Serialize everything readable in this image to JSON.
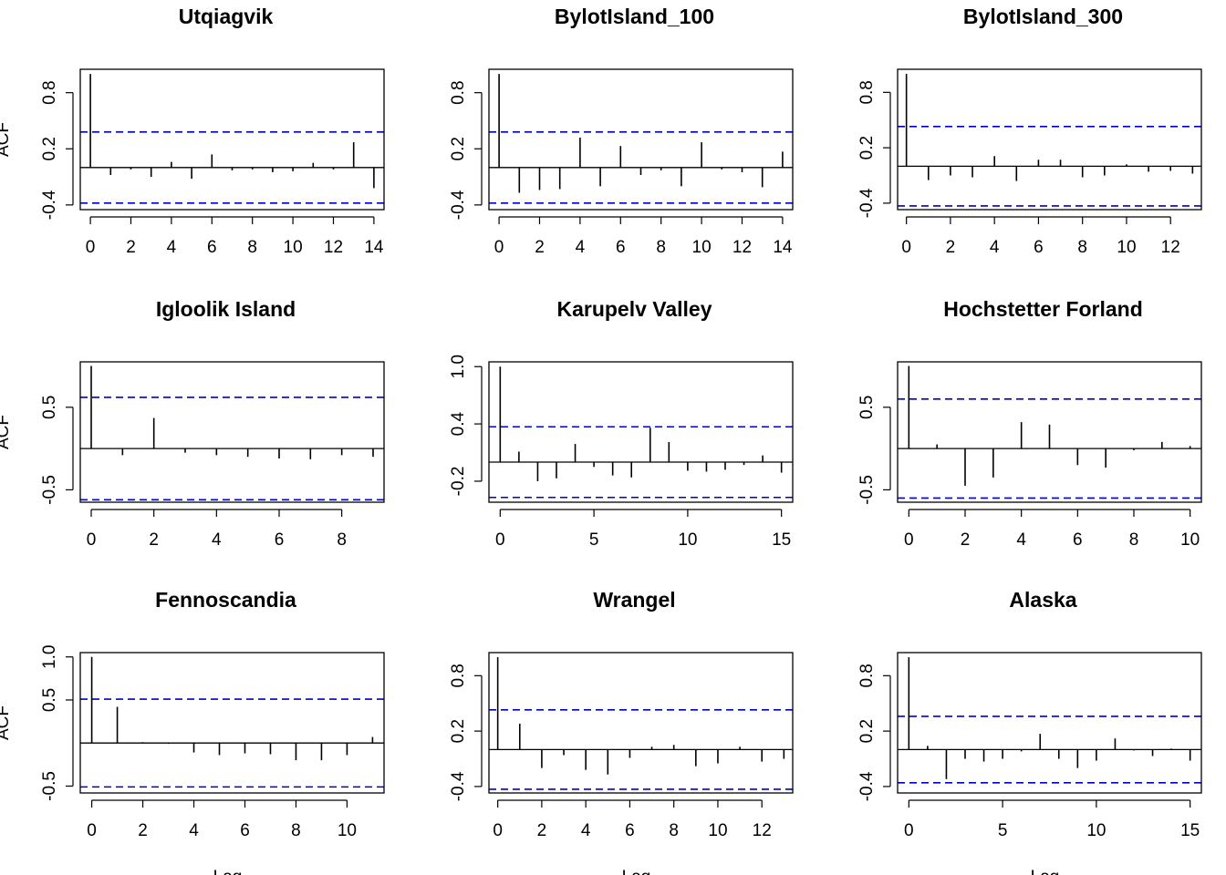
{
  "figure": {
    "ylabel": "ACF",
    "xlabel": "Lag"
  },
  "chart_data": [
    {
      "type": "bar",
      "title": "Utqiagvik",
      "xlabel": "Lag",
      "ylabel": "ACF",
      "xlim": [
        -0.5,
        14.5
      ],
      "ylim": [
        -0.45,
        1.05
      ],
      "xticks": [
        0,
        2,
        4,
        6,
        8,
        10,
        12,
        14
      ],
      "yticks": [
        -0.4,
        0.2,
        0.8
      ],
      "ytick_labels": [
        "-0.4",
        "0.2",
        "0.8"
      ],
      "ci": 0.38,
      "ci_color": "#0000cc",
      "lags": [
        0,
        1,
        2,
        3,
        4,
        5,
        6,
        7,
        8,
        9,
        10,
        11,
        12,
        13,
        14
      ],
      "acf": [
        1.0,
        -0.08,
        -0.02,
        -0.1,
        0.06,
        -0.12,
        0.14,
        -0.03,
        -0.02,
        -0.05,
        -0.04,
        0.05,
        -0.02,
        0.27,
        -0.22
      ]
    },
    {
      "type": "bar",
      "title": "BylotIsland_100",
      "xlabel": "Lag",
      "ylabel": "ACF",
      "xlim": [
        -0.5,
        14.5
      ],
      "ylim": [
        -0.45,
        1.05
      ],
      "xticks": [
        0,
        2,
        4,
        6,
        8,
        10,
        12,
        14
      ],
      "yticks": [
        -0.4,
        0.2,
        0.8
      ],
      "ytick_labels": [
        "-0.4",
        "0.2",
        "0.8"
      ],
      "ci": 0.38,
      "ci_color": "#0000cc",
      "lags": [
        0,
        1,
        2,
        3,
        4,
        5,
        6,
        7,
        8,
        9,
        10,
        11,
        12,
        13,
        14
      ],
      "acf": [
        1.0,
        -0.27,
        -0.24,
        -0.23,
        0.32,
        -0.2,
        0.23,
        -0.08,
        -0.03,
        -0.2,
        0.27,
        -0.02,
        -0.05,
        -0.21,
        0.17
      ]
    },
    {
      "type": "bar",
      "title": "BylotIsland_300",
      "xlabel": "Lag",
      "ylabel": "ACF",
      "xlim": [
        -0.4,
        13.4
      ],
      "ylim": [
        -0.47,
        1.05
      ],
      "xticks": [
        0,
        2,
        4,
        6,
        8,
        10,
        12
      ],
      "yticks": [
        -0.4,
        0.2,
        0.8
      ],
      "ytick_labels": [
        "-0.4",
        "0.2",
        "0.8"
      ],
      "ci": 0.43,
      "ci_color": "#0000cc",
      "lags": [
        0,
        1,
        2,
        3,
        4,
        5,
        6,
        7,
        8,
        9,
        10,
        11,
        12,
        13
      ],
      "acf": [
        1.0,
        -0.15,
        -0.1,
        -0.12,
        0.11,
        -0.16,
        0.07,
        0.07,
        -0.12,
        -0.1,
        0.02,
        -0.06,
        -0.05,
        -0.08
      ]
    },
    {
      "type": "bar",
      "title": "Igloolik Island",
      "xlabel": "Lag",
      "ylabel": "ACF",
      "xlim": [
        -0.35,
        9.35
      ],
      "ylim": [
        -0.65,
        1.05
      ],
      "xticks": [
        0,
        2,
        4,
        6,
        8
      ],
      "yticks": [
        -0.5,
        0.5
      ],
      "ytick_labels": [
        "-0.5",
        "0.5"
      ],
      "ci": 0.62,
      "ci_color": "#0000cc",
      "lags": [
        0,
        1,
        2,
        3,
        4,
        5,
        6,
        7,
        8,
        9
      ],
      "acf": [
        1.0,
        -0.08,
        0.37,
        -0.05,
        -0.08,
        -0.1,
        -0.12,
        -0.13,
        -0.08,
        -0.1
      ]
    },
    {
      "type": "bar",
      "title": "Karupelv Valley",
      "xlabel": "Lag",
      "ylabel": "ACF",
      "xlim": [
        -0.6,
        15.6
      ],
      "ylim": [
        -0.42,
        1.05
      ],
      "xticks": [
        0,
        5,
        10,
        15
      ],
      "yticks": [
        -0.2,
        0.4,
        1.0
      ],
      "ytick_labels": [
        "-0.2",
        "0.4",
        "1.0"
      ],
      "ci": 0.37,
      "ci_color": "#0000cc",
      "lags": [
        0,
        1,
        2,
        3,
        4,
        5,
        6,
        7,
        8,
        9,
        10,
        11,
        12,
        13,
        14,
        15
      ],
      "acf": [
        1.0,
        0.11,
        -0.2,
        -0.17,
        0.19,
        -0.05,
        -0.14,
        -0.16,
        0.36,
        0.21,
        -0.09,
        -0.1,
        -0.08,
        -0.03,
        0.07,
        -0.11
      ]
    },
    {
      "type": "bar",
      "title": "Hochstetter Forland",
      "xlabel": "Lag",
      "ylabel": "ACF",
      "xlim": [
        -0.4,
        10.4
      ],
      "ylim": [
        -0.65,
        1.05
      ],
      "xticks": [
        0,
        2,
        4,
        6,
        8,
        10
      ],
      "yticks": [
        -0.5,
        0.5
      ],
      "ytick_labels": [
        "-0.5",
        "0.5"
      ],
      "ci": 0.6,
      "ci_color": "#0000cc",
      "lags": [
        0,
        1,
        2,
        3,
        4,
        5,
        6,
        7,
        8,
        9,
        10
      ],
      "acf": [
        1.0,
        0.05,
        -0.45,
        -0.35,
        0.32,
        0.29,
        -0.2,
        -0.23,
        -0.02,
        0.08,
        0.03
      ]
    },
    {
      "type": "bar",
      "title": "Fennoscandia",
      "xlabel": "Lag",
      "ylabel": "ACF",
      "xlim": [
        -0.45,
        11.45
      ],
      "ylim": [
        -0.58,
        1.05
      ],
      "xticks": [
        0,
        2,
        4,
        6,
        8,
        10
      ],
      "yticks": [
        -0.5,
        0.5,
        1.0
      ],
      "ytick_labels": [
        "-0.5",
        "0.5",
        "1.0"
      ],
      "ci": 0.51,
      "ci_color": "#0000cc",
      "lags": [
        0,
        1,
        2,
        3,
        4,
        5,
        6,
        7,
        8,
        9,
        10,
        11
      ],
      "acf": [
        1.0,
        0.42,
        0.01,
        -0.01,
        -0.11,
        -0.14,
        -0.12,
        -0.13,
        -0.2,
        -0.2,
        -0.14,
        0.07
      ]
    },
    {
      "type": "bar",
      "title": "Wrangel",
      "xlabel": "Lag",
      "ylabel": "ACF",
      "xlim": [
        -0.4,
        13.4
      ],
      "ylim": [
        -0.47,
        1.05
      ],
      "xticks": [
        0,
        2,
        4,
        6,
        8,
        10,
        12
      ],
      "yticks": [
        -0.4,
        0.2,
        0.8
      ],
      "ytick_labels": [
        "-0.4",
        "0.2",
        "0.8"
      ],
      "ci": 0.43,
      "ci_color": "#0000cc",
      "lags": [
        0,
        1,
        2,
        3,
        4,
        5,
        6,
        7,
        8,
        9,
        10,
        11,
        12,
        13
      ],
      "acf": [
        1.0,
        0.28,
        -0.2,
        -0.06,
        -0.22,
        -0.27,
        -0.09,
        0.03,
        0.05,
        -0.18,
        -0.15,
        0.03,
        -0.13,
        -0.1
      ]
    },
    {
      "type": "bar",
      "title": "Alaska",
      "xlabel": "Lag",
      "ylabel": "ACF",
      "xlim": [
        -0.6,
        15.6
      ],
      "ylim": [
        -0.47,
        1.05
      ],
      "xticks": [
        0,
        5,
        10,
        15
      ],
      "yticks": [
        -0.4,
        0.2,
        0.8
      ],
      "ytick_labels": [
        "-0.4",
        "0.2",
        "0.8"
      ],
      "ci": 0.36,
      "ci_color": "#0000cc",
      "lags": [
        0,
        1,
        2,
        3,
        4,
        5,
        6,
        7,
        8,
        9,
        10,
        11,
        12,
        13,
        14,
        15
      ],
      "acf": [
        1.0,
        0.04,
        -0.32,
        -0.1,
        -0.13,
        -0.1,
        -0.02,
        0.17,
        -0.1,
        -0.2,
        -0.12,
        0.12,
        -0.01,
        -0.07,
        0.01,
        -0.12
      ]
    }
  ]
}
